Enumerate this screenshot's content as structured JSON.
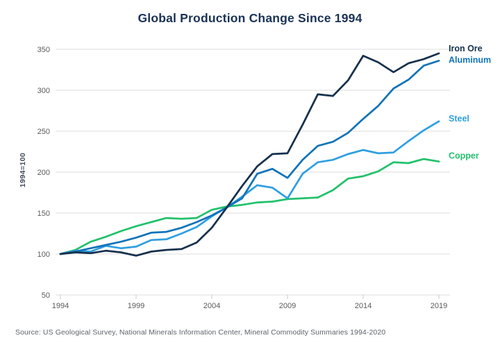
{
  "page": {
    "title": "Global Production Change Since 1994",
    "source": "Source: US Geological Survey, National Minerals Information Center, Mineral Commodity Summaries 1994-2020"
  },
  "chart_data": {
    "type": "line",
    "title": "Global Production Change Since 1994",
    "xlabel": "",
    "ylabel": "1994=100",
    "x": [
      1994,
      1995,
      1996,
      1997,
      1998,
      1999,
      2000,
      2001,
      2002,
      2003,
      2004,
      2005,
      2006,
      2007,
      2008,
      2009,
      2010,
      2011,
      2012,
      2013,
      2014,
      2015,
      2016,
      2017,
      2018,
      2019
    ],
    "xticks": [
      1994,
      1999,
      2004,
      2009,
      2014,
      2019
    ],
    "yticks": [
      50,
      100,
      150,
      200,
      250,
      300,
      350
    ],
    "ylim": [
      50,
      350
    ],
    "grid": "horizontal-only",
    "legend_position": "right-of-line-ends",
    "series": [
      {
        "name": "Iron Ore",
        "color": "#16304d",
        "values": [
          100,
          102,
          101,
          104,
          102,
          98,
          103,
          105,
          106,
          114,
          132,
          157,
          183,
          207,
          222,
          223,
          258,
          295,
          293,
          312,
          342,
          334,
          322,
          333,
          338,
          345
        ]
      },
      {
        "name": "Aluminum",
        "color": "#1173b9",
        "values": [
          100,
          103,
          107,
          111,
          115,
          120,
          126,
          127,
          132,
          139,
          147,
          157,
          168,
          198,
          204,
          193,
          215,
          232,
          237,
          248,
          265,
          281,
          302,
          313,
          330,
          336
        ]
      },
      {
        "name": "Steel",
        "color": "#2f9fe0",
        "values": [
          100,
          104,
          103,
          110,
          107,
          109,
          117,
          118,
          125,
          133,
          146,
          157,
          170,
          184,
          181,
          168,
          198,
          212,
          215,
          222,
          227,
          223,
          224,
          238,
          251,
          262
        ]
      },
      {
        "name": "Copper",
        "color": "#22c16b",
        "values": [
          100,
          105,
          115,
          121,
          128,
          134,
          139,
          144,
          143,
          144,
          154,
          158,
          160,
          163,
          164,
          167,
          168,
          169,
          178,
          192,
          195,
          201,
          212,
          211,
          216,
          213
        ]
      }
    ],
    "axis_colors": {
      "tick_label": "#58595b",
      "gridline": "#dcdcdc",
      "tick_mark": "#c9c9c9"
    }
  }
}
